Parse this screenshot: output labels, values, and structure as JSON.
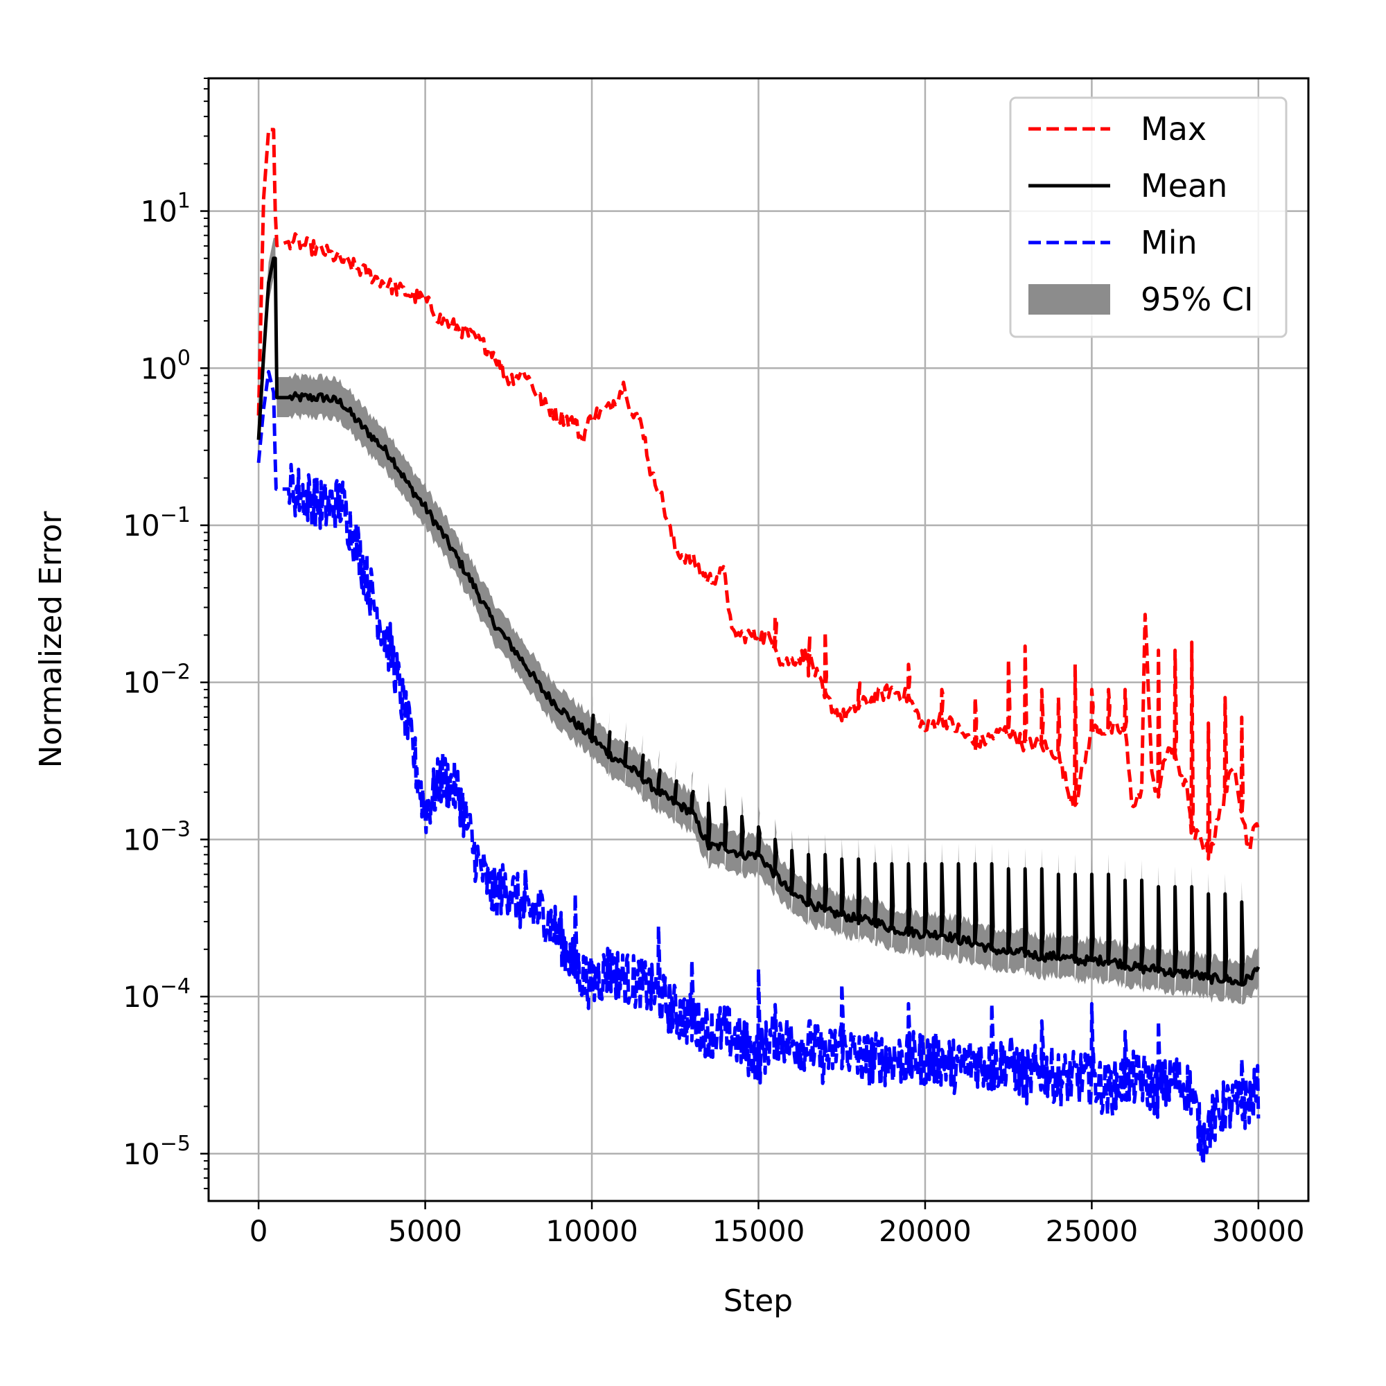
{
  "chart_data": {
    "type": "line",
    "title": "",
    "xlabel": "Step",
    "ylabel": "Normalized Error",
    "xscale": "linear",
    "yscale": "log",
    "xlim": [
      -1500,
      31500
    ],
    "ylim": [
      5e-06,
      70
    ],
    "grid": true,
    "legend_position": "top-right",
    "x_ticks": [
      {
        "value": 0,
        "label": "0"
      },
      {
        "value": 5000,
        "label": "5000"
      },
      {
        "value": 10000,
        "label": "10000"
      },
      {
        "value": 15000,
        "label": "15000"
      },
      {
        "value": 20000,
        "label": "20000"
      },
      {
        "value": 25000,
        "label": "25000"
      },
      {
        "value": 30000,
        "label": "30000"
      }
    ],
    "y_ticks": [
      {
        "value": 1e-05,
        "base": "10",
        "exp": "−5"
      },
      {
        "value": 0.0001,
        "base": "10",
        "exp": "−4"
      },
      {
        "value": 0.001,
        "base": "10",
        "exp": "−3"
      },
      {
        "value": 0.01,
        "base": "10",
        "exp": "−2"
      },
      {
        "value": 0.1,
        "base": "10",
        "exp": "−1"
      },
      {
        "value": 1,
        "base": "10",
        "exp": "0"
      },
      {
        "value": 10,
        "base": "10",
        "exp": "1"
      }
    ],
    "series": [
      {
        "name": "Max",
        "style": "dashed",
        "color": "#ff0000",
        "points": [
          [
            0,
            0.5
          ],
          [
            150,
            12
          ],
          [
            300,
            33
          ],
          [
            450,
            33
          ],
          [
            520,
            6
          ],
          [
            1000,
            6.5
          ],
          [
            2000,
            5.5
          ],
          [
            3000,
            4.3
          ],
          [
            4000,
            3.3
          ],
          [
            5000,
            2.7
          ],
          [
            5500,
            2.0
          ],
          [
            6000,
            1.8
          ],
          [
            7000,
            1.3
          ],
          [
            7500,
            0.85
          ],
          [
            8000,
            0.95
          ],
          [
            8500,
            0.6
          ],
          [
            9000,
            0.5
          ],
          [
            9500,
            0.45
          ],
          [
            9700,
            0.35
          ],
          [
            10000,
            0.5
          ],
          [
            10500,
            0.55
          ],
          [
            11000,
            0.8
          ],
          [
            11200,
            0.5
          ],
          [
            11500,
            0.45
          ],
          [
            11800,
            0.2
          ],
          [
            12000,
            0.18
          ],
          [
            12300,
            0.1
          ],
          [
            12500,
            0.07
          ],
          [
            13000,
            0.06
          ],
          [
            13500,
            0.045
          ],
          [
            14000,
            0.05
          ],
          [
            14200,
            0.02
          ],
          [
            15000,
            0.02
          ],
          [
            15500,
            0.018
          ],
          [
            15700,
            0.013
          ],
          [
            16000,
            0.014
          ],
          [
            16500,
            0.015
          ],
          [
            17000,
            0.008
          ],
          [
            17500,
            0.006
          ],
          [
            18000,
            0.007
          ],
          [
            18500,
            0.008
          ],
          [
            19000,
            0.009
          ],
          [
            19500,
            0.008
          ],
          [
            20000,
            0.005
          ],
          [
            20500,
            0.006
          ],
          [
            21000,
            0.005
          ],
          [
            21500,
            0.004
          ],
          [
            22000,
            0.0045
          ],
          [
            22500,
            0.005
          ],
          [
            23000,
            0.004
          ],
          [
            23500,
            0.004
          ],
          [
            24000,
            0.0035
          ],
          [
            24300,
            0.002
          ],
          [
            24500,
            0.0017
          ],
          [
            25000,
            0.005
          ],
          [
            25500,
            0.005
          ],
          [
            26000,
            0.005
          ],
          [
            26200,
            0.0017
          ],
          [
            26500,
            0.002
          ],
          [
            26600,
            0.03
          ],
          [
            26800,
            0.0025
          ],
          [
            27000,
            0.002
          ],
          [
            27300,
            0.004
          ],
          [
            27600,
            0.003
          ],
          [
            27900,
            0.0019
          ],
          [
            28000,
            0.0011
          ],
          [
            28300,
            0.001
          ],
          [
            28500,
            0.0008
          ],
          [
            28700,
            0.0011
          ],
          [
            29000,
            0.002
          ],
          [
            29300,
            0.003
          ],
          [
            29500,
            0.0015
          ],
          [
            29700,
            0.0009
          ],
          [
            30000,
            0.0013
          ]
        ],
        "spikes": [
          [
            15500,
            0.026
          ],
          [
            16500,
            0.011
          ],
          [
            17000,
            0.021
          ],
          [
            18000,
            0.009
          ],
          [
            19500,
            0.013
          ],
          [
            20500,
            0.009
          ],
          [
            21500,
            0.008
          ],
          [
            22500,
            0.014
          ],
          [
            23000,
            0.017
          ],
          [
            23500,
            0.009
          ],
          [
            24000,
            0.008
          ],
          [
            24500,
            0.013
          ],
          [
            25000,
            0.009
          ],
          [
            25500,
            0.009
          ],
          [
            26000,
            0.009
          ],
          [
            27000,
            0.016
          ],
          [
            27500,
            0.016
          ],
          [
            28000,
            0.018
          ],
          [
            28500,
            0.0055
          ],
          [
            29000,
            0.008
          ],
          [
            29500,
            0.006
          ]
        ]
      },
      {
        "name": "Mean",
        "style": "solid",
        "color": "#000000",
        "points": [
          [
            0,
            0.35
          ],
          [
            150,
            1.2
          ],
          [
            300,
            3.5
          ],
          [
            450,
            5
          ],
          [
            500,
            5
          ],
          [
            550,
            0.65
          ],
          [
            1000,
            0.65
          ],
          [
            1500,
            0.65
          ],
          [
            2000,
            0.65
          ],
          [
            2500,
            0.6
          ],
          [
            3000,
            0.45
          ],
          [
            3500,
            0.35
          ],
          [
            4000,
            0.27
          ],
          [
            4500,
            0.18
          ],
          [
            5000,
            0.13
          ],
          [
            5500,
            0.09
          ],
          [
            6000,
            0.06
          ],
          [
            6500,
            0.04
          ],
          [
            7000,
            0.025
          ],
          [
            7500,
            0.018
          ],
          [
            8000,
            0.013
          ],
          [
            8500,
            0.009
          ],
          [
            9000,
            0.007
          ],
          [
            9500,
            0.0055
          ],
          [
            10000,
            0.0045
          ],
          [
            10500,
            0.0035
          ],
          [
            11000,
            0.003
          ],
          [
            11500,
            0.0025
          ],
          [
            12000,
            0.002
          ],
          [
            12500,
            0.0017
          ],
          [
            13000,
            0.0015
          ],
          [
            13500,
            0.0009
          ],
          [
            14000,
            0.0009
          ],
          [
            14500,
            0.0008
          ],
          [
            15000,
            0.0008
          ],
          [
            15500,
            0.0006
          ],
          [
            16000,
            0.00045
          ],
          [
            16500,
            0.0004
          ],
          [
            17000,
            0.00035
          ],
          [
            17500,
            0.00033
          ],
          [
            18000,
            0.00031
          ],
          [
            18500,
            0.0003
          ],
          [
            19000,
            0.00027
          ],
          [
            19500,
            0.00026
          ],
          [
            20000,
            0.00025
          ],
          [
            20500,
            0.00025
          ],
          [
            21000,
            0.00023
          ],
          [
            21500,
            0.00022
          ],
          [
            22000,
            0.0002
          ],
          [
            22500,
            0.00019
          ],
          [
            23000,
            0.00019
          ],
          [
            23500,
            0.00018
          ],
          [
            24000,
            0.00018
          ],
          [
            24500,
            0.00017
          ],
          [
            25000,
            0.00017
          ],
          [
            25500,
            0.00017
          ],
          [
            26000,
            0.00016
          ],
          [
            26500,
            0.00015
          ],
          [
            27000,
            0.00015
          ],
          [
            27500,
            0.00014
          ],
          [
            28000,
            0.00014
          ],
          [
            28500,
            0.00013
          ],
          [
            29000,
            0.00013
          ],
          [
            29500,
            0.00012
          ],
          [
            30000,
            0.00015
          ]
        ],
        "spikes": [
          [
            10000,
            0.0042
          ],
          [
            10500,
            0.0036
          ],
          [
            11000,
            0.0034
          ],
          [
            11500,
            0.0028
          ],
          [
            12000,
            0.0024
          ],
          [
            12500,
            0.002
          ],
          [
            13000,
            0.0019
          ],
          [
            13500,
            0.0017
          ],
          [
            14000,
            0.0016
          ],
          [
            14500,
            0.0014
          ],
          [
            15000,
            0.0012
          ],
          [
            15500,
            0.001
          ],
          [
            16000,
            0.00085
          ],
          [
            16500,
            0.0008
          ],
          [
            17000,
            0.0008
          ],
          [
            17500,
            0.00075
          ],
          [
            18000,
            0.00075
          ],
          [
            18500,
            0.0007
          ],
          [
            19000,
            0.0007
          ],
          [
            19500,
            0.0007
          ],
          [
            20000,
            0.0007
          ],
          [
            20500,
            0.0007
          ],
          [
            21000,
            0.0007
          ],
          [
            21500,
            0.0007
          ],
          [
            22000,
            0.0007
          ],
          [
            22500,
            0.00065
          ],
          [
            23000,
            0.00065
          ],
          [
            23500,
            0.00065
          ],
          [
            24000,
            0.0006
          ],
          [
            24500,
            0.0006
          ],
          [
            25000,
            0.0006
          ],
          [
            25500,
            0.0006
          ],
          [
            26000,
            0.00055
          ],
          [
            26500,
            0.00055
          ],
          [
            27000,
            0.0005
          ],
          [
            27500,
            0.0005
          ],
          [
            28000,
            0.0005
          ],
          [
            28500,
            0.00045
          ],
          [
            29000,
            0.00045
          ],
          [
            29500,
            0.0004
          ]
        ]
      },
      {
        "name": "Min",
        "style": "dashed",
        "color": "#0000ff",
        "points": [
          [
            0,
            0.25
          ],
          [
            150,
            0.55
          ],
          [
            300,
            0.95
          ],
          [
            450,
            0.7
          ],
          [
            520,
            0.17
          ],
          [
            1000,
            0.17
          ],
          [
            1500,
            0.15
          ],
          [
            2000,
            0.13
          ],
          [
            2500,
            0.14
          ],
          [
            3000,
            0.07
          ],
          [
            3500,
            0.03
          ],
          [
            4000,
            0.015
          ],
          [
            4500,
            0.005
          ],
          [
            5000,
            0.0015
          ],
          [
            5500,
            0.0025
          ],
          [
            6000,
            0.002
          ],
          [
            6500,
            0.0008
          ],
          [
            7000,
            0.00045
          ],
          [
            7500,
            0.0005
          ],
          [
            8000,
            0.00035
          ],
          [
            8500,
            0.00035
          ],
          [
            9000,
            0.00025
          ],
          [
            9500,
            0.00015
          ],
          [
            10000,
            0.00012
          ],
          [
            10500,
            0.00015
          ],
          [
            11000,
            0.00013
          ],
          [
            11500,
            0.00012
          ],
          [
            12000,
            0.0001
          ],
          [
            12500,
            8e-05
          ],
          [
            13000,
            7e-05
          ],
          [
            13500,
            6e-05
          ],
          [
            14000,
            6e-05
          ],
          [
            14500,
            5e-05
          ],
          [
            15000,
            4e-05
          ],
          [
            15500,
            6e-05
          ],
          [
            16000,
            5e-05
          ],
          [
            16500,
            5e-05
          ],
          [
            17000,
            4e-05
          ],
          [
            17500,
            5e-05
          ],
          [
            18000,
            4e-05
          ],
          [
            18500,
            4e-05
          ],
          [
            19000,
            4e-05
          ],
          [
            19500,
            4e-05
          ],
          [
            20000,
            4e-05
          ],
          [
            20500,
            4e-05
          ],
          [
            21000,
            3.5e-05
          ],
          [
            21500,
            4e-05
          ],
          [
            22000,
            3.5e-05
          ],
          [
            22500,
            4e-05
          ],
          [
            23000,
            3e-05
          ],
          [
            23500,
            3.5e-05
          ],
          [
            24000,
            3e-05
          ],
          [
            24500,
            3e-05
          ],
          [
            25000,
            3e-05
          ],
          [
            25500,
            2.5e-05
          ],
          [
            26000,
            3e-05
          ],
          [
            26500,
            3e-05
          ],
          [
            27000,
            2.5e-05
          ],
          [
            27500,
            3e-05
          ],
          [
            28000,
            2.5e-05
          ],
          [
            28300,
            1.2e-05
          ],
          [
            28500,
            1.5e-05
          ],
          [
            29000,
            2e-05
          ],
          [
            29500,
            2e-05
          ],
          [
            30000,
            2.5e-05
          ]
        ],
        "spikes": [
          [
            8000,
            0.00065
          ],
          [
            9500,
            0.00045
          ],
          [
            10500,
            0.0002
          ],
          [
            12000,
            0.00028
          ],
          [
            13000,
            0.00017
          ],
          [
            15000,
            0.00015
          ],
          [
            17500,
            0.00012
          ],
          [
            19500,
            9e-05
          ],
          [
            22000,
            9e-05
          ],
          [
            23500,
            7e-05
          ],
          [
            25000,
            9e-05
          ],
          [
            26000,
            6e-05
          ],
          [
            27000,
            7e-05
          ],
          [
            29500,
            4e-05
          ]
        ]
      },
      {
        "name": "95% CI",
        "type": "band",
        "color": "#8c8c8c",
        "factor_upper": 1.35,
        "factor_lower": 0.75
      }
    ]
  }
}
